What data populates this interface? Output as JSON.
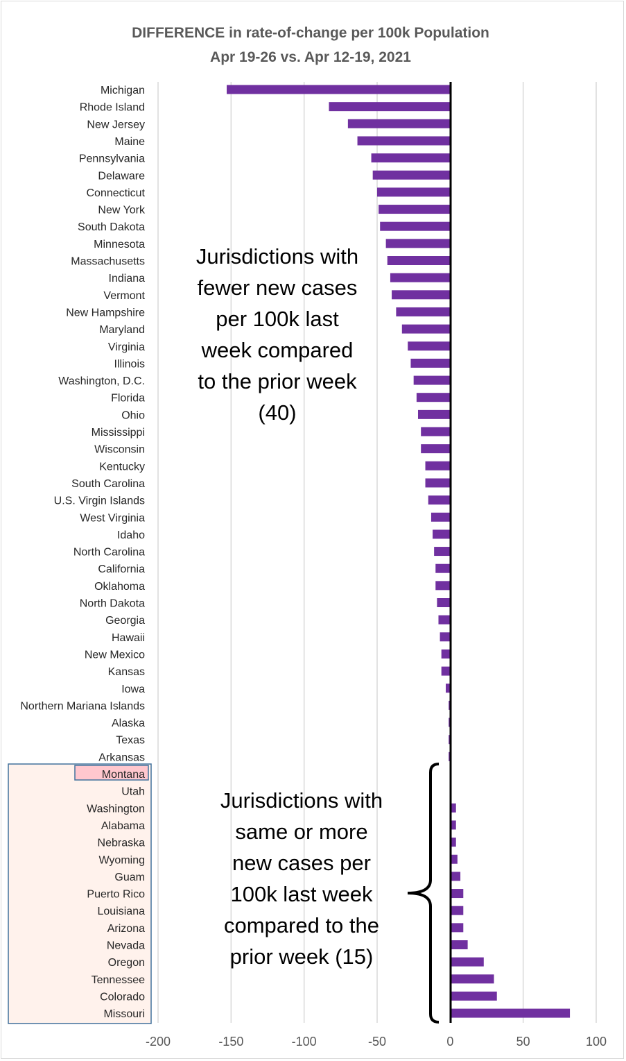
{
  "chart_data": {
    "type": "bar",
    "orientation": "horizontal",
    "title": "DIFFERENCE in rate-of-change per 100k Population",
    "subtitle": "Apr 19-26 vs. Apr 12-19, 2021",
    "xlim": [
      -200,
      100
    ],
    "xticks": [
      -200,
      -150,
      -100,
      -50,
      0,
      50,
      100
    ],
    "xtick_labels": [
      "-200",
      "-150",
      "-100",
      "-50",
      "0",
      "50",
      "100"
    ],
    "grid": "vertical",
    "bar_color": "#7030a0",
    "categories": [
      "Michigan",
      "Rhode Island",
      "New Jersey",
      "Maine",
      "Pennsylvania",
      "Delaware",
      "Connecticut",
      "New York",
      "South Dakota",
      "Minnesota",
      "Massachusetts",
      "Indiana",
      "Vermont",
      "New Hampshire",
      "Maryland",
      "Virginia",
      "Illinois",
      "Washington, D.C.",
      "Florida",
      "Ohio",
      "Mississippi",
      "Wisconsin",
      "Kentucky",
      "South Carolina",
      "U.S. Virgin Islands",
      "West Virginia",
      "Idaho",
      "North Carolina",
      "California",
      "Oklahoma",
      "North Dakota",
      "Georgia",
      "Hawaii",
      "New Mexico",
      "Kansas",
      "Iowa",
      "Northern Mariana Islands",
      "Alaska",
      "Texas",
      "Arkansas",
      "Montana",
      "Utah",
      "Washington",
      "Alabama",
      "Nebraska",
      "Wyoming",
      "Guam",
      "Puerto Rico",
      "Louisiana",
      "Arizona",
      "Nevada",
      "Oregon",
      "Tennessee",
      "Colorado",
      "Missouri"
    ],
    "values": [
      -153,
      -83,
      -70,
      -63.5,
      -54,
      -53,
      -50,
      -49,
      -48,
      -44,
      -43,
      -41,
      -40,
      -37,
      -33,
      -29,
      -27,
      -25,
      -23,
      -22,
      -20,
      -20,
      -17,
      -17,
      -15,
      -13,
      -12,
      -11,
      -10,
      -10,
      -9,
      -8,
      -7,
      -6,
      -6,
      -3,
      -1,
      -1,
      -1,
      -1,
      0,
      0,
      4,
      4,
      4,
      5,
      7,
      9,
      9,
      9,
      12,
      23,
      30,
      32,
      82
    ],
    "highlighted_category": "Montana",
    "highlight_color": "#ffc7ce",
    "group_box_color": "#fff2ec",
    "group_box_border": "#41719c",
    "annotations": [
      {
        "id": "fewer",
        "lines": [
          "Jurisdictions with",
          "fewer new cases",
          "per 100k last",
          "week compared",
          "to the prior week",
          "(40)"
        ]
      },
      {
        "id": "more",
        "lines": [
          "Jurisdictions with",
          "same or more",
          "new cases per",
          "100k last week",
          "compared to the",
          "prior week (15)"
        ]
      }
    ]
  }
}
